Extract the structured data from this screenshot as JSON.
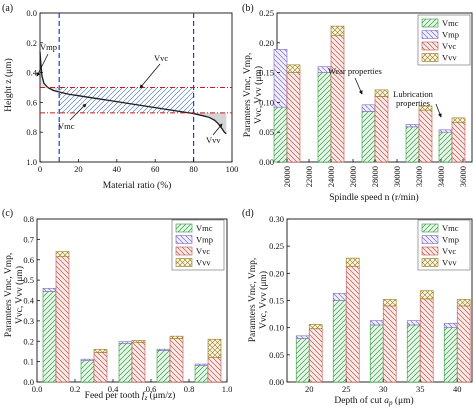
{
  "chart_data": [
    {
      "panel": "(a)",
      "type": "line",
      "xlabel": "Material ratio (%)",
      "ylabel": "Height z (μm)",
      "xlim": [
        0,
        100
      ],
      "ylim": [
        1.0,
        0.0
      ],
      "y_inverted": true,
      "xticks": [
        "0",
        "20",
        "40",
        "60",
        "80",
        "100"
      ],
      "yticks": [
        "0.0",
        "0.2",
        "0.4",
        "0.6",
        "0.8",
        "1.0"
      ],
      "curve": {
        "x": [
          0,
          0.5,
          1,
          2,
          4,
          7,
          10,
          15,
          20,
          25,
          30,
          35,
          40,
          45,
          50,
          55,
          60,
          65,
          70,
          75,
          80,
          85,
          88,
          91,
          93,
          95,
          96,
          97
        ],
        "y": [
          0.26,
          0.35,
          0.42,
          0.47,
          0.5,
          0.52,
          0.53,
          0.545,
          0.555,
          0.565,
          0.575,
          0.585,
          0.595,
          0.605,
          0.615,
          0.625,
          0.635,
          0.645,
          0.655,
          0.665,
          0.675,
          0.69,
          0.7,
          0.72,
          0.745,
          0.78,
          0.8,
          0.81
        ]
      },
      "vertical_lines_x": [
        10,
        80
      ],
      "horizontal_lines_y": [
        0.5,
        0.67
      ],
      "annotations": [
        "Vmp",
        "Vvc",
        "Vmc",
        "Vvv"
      ],
      "colors": {
        "curve": "#1c1c1c",
        "hatch": "#3a6fb0",
        "vline": "#1f3fd6",
        "hline": "#d01818"
      }
    },
    {
      "panel": "(b)",
      "type": "bar",
      "stacked": true,
      "xlabel": "Spindle speed n (r/min)",
      "ylabel_lines": [
        "Paramters Vmc, Vmp,",
        "Vvc, Vvv (μm)"
      ],
      "ylim": [
        0,
        0.25
      ],
      "yticks": [
        "0.00",
        "0.05",
        "0.10",
        "0.15",
        "0.20",
        "0.25"
      ],
      "categories": [
        "20000",
        "22000",
        "24000",
        "26000",
        "28000",
        "30000",
        "32000",
        "34000",
        "36000"
      ],
      "groups": [
        {
          "x": 20000,
          "bars": [
            {
              "s": [
                0.092,
                0.097,
                0,
                0
              ]
            },
            {
              "s": [
                0,
                0,
                0.15,
                0.013
              ]
            }
          ]
        },
        {
          "x": 24000,
          "bars": [
            {
              "s": [
                0.15,
                0.01,
                0,
                0
              ]
            },
            {
              "s": [
                0,
                0,
                0.212,
                0.016
              ]
            }
          ]
        },
        {
          "x": 28000,
          "bars": [
            {
              "s": [
                0.085,
                0.011,
                0,
                0
              ]
            },
            {
              "s": [
                0,
                0,
                0.11,
                0.011
              ]
            }
          ]
        },
        {
          "x": 32000,
          "bars": [
            {
              "s": [
                0.059,
                0.004,
                0,
                0
              ]
            },
            {
              "s": [
                0,
                0,
                0.087,
                0.007
              ]
            }
          ]
        },
        {
          "x": 35000,
          "bars": [
            {
              "s": [
                0.05,
                0.004,
                0,
                0
              ]
            },
            {
              "s": [
                0,
                0,
                0.066,
                0.008
              ]
            }
          ]
        }
      ],
      "legend": [
        "Vmc",
        "Vmp",
        "Vvc",
        "Vvv"
      ],
      "legend_position": "top-right",
      "annotations": [
        "Wear properties",
        "Lubrication properties"
      ]
    },
    {
      "panel": "(c)",
      "type": "bar",
      "stacked": true,
      "xlabel": "Feed per tooth fz (μm/z)",
      "ylabel_lines": [
        "Paramters Vmc, Vmp,",
        "Vvc, Vvv (μm)"
      ],
      "xlim": [
        0.0,
        1.0
      ],
      "ylim": [
        0,
        0.8
      ],
      "xticks": [
        "0.0",
        "0.2",
        "0.4",
        "0.6",
        "0.8",
        "1.0"
      ],
      "yticks": [
        "0.0",
        "0.1",
        "0.2",
        "0.3",
        "0.4",
        "0.5",
        "0.6",
        "0.7",
        "0.8"
      ],
      "groups": [
        {
          "x": 0.1,
          "bars": [
            {
              "s": [
                0.445,
                0.015,
                0,
                0
              ]
            },
            {
              "s": [
                0,
                0,
                0.615,
                0.025
              ]
            }
          ]
        },
        {
          "x": 0.3,
          "bars": [
            {
              "s": [
                0.105,
                0.007,
                0,
                0
              ]
            },
            {
              "s": [
                0,
                0,
                0.145,
                0.015
              ]
            }
          ]
        },
        {
          "x": 0.5,
          "bars": [
            {
              "s": [
                0.19,
                0.008,
                0,
                0
              ]
            },
            {
              "s": [
                0,
                0,
                0.193,
                0.011
              ]
            }
          ]
        },
        {
          "x": 0.7,
          "bars": [
            {
              "s": [
                0.155,
                0.006,
                0,
                0
              ]
            },
            {
              "s": [
                0,
                0,
                0.213,
                0.012
              ]
            }
          ]
        },
        {
          "x": 0.9,
          "bars": [
            {
              "s": [
                0.082,
                0.006,
                0,
                0
              ]
            },
            {
              "s": [
                0,
                0,
                0.12,
                0.09
              ]
            }
          ]
        }
      ],
      "legend": [
        "Vmc",
        "Vmp",
        "Vvc",
        "Vvv"
      ],
      "legend_position": "top-right"
    },
    {
      "panel": "(d)",
      "type": "bar",
      "stacked": true,
      "xlabel": "Depth of cut ap (μm)",
      "ylabel_lines": [
        "Paramters Vmc, Vmp,",
        "Vvc, Vvv (μm)"
      ],
      "xlim": [
        17,
        42
      ],
      "ylim": [
        0,
        0.3
      ],
      "xticks": [
        "20",
        "25",
        "30",
        "35",
        "40"
      ],
      "yticks": [
        "0.00",
        "0.05",
        "0.10",
        "0.15",
        "0.20",
        "0.25",
        "0.30"
      ],
      "groups": [
        {
          "x": 20,
          "bars": [
            {
              "s": [
                0.08,
                0.005,
                0,
                0
              ]
            },
            {
              "s": [
                0,
                0,
                0.098,
                0.008
              ]
            }
          ]
        },
        {
          "x": 25,
          "bars": [
            {
              "s": [
                0.15,
                0.013,
                0,
                0
              ]
            },
            {
              "s": [
                0,
                0,
                0.213,
                0.015
              ]
            }
          ]
        },
        {
          "x": 30,
          "bars": [
            {
              "s": [
                0.105,
                0.008,
                0,
                0
              ]
            },
            {
              "s": [
                0,
                0,
                0.14,
                0.012
              ]
            }
          ]
        },
        {
          "x": 35,
          "bars": [
            {
              "s": [
                0.105,
                0.008,
                0,
                0
              ]
            },
            {
              "s": [
                0,
                0,
                0.153,
                0.015
              ]
            }
          ]
        },
        {
          "x": 40,
          "bars": [
            {
              "s": [
                0.1,
                0.008,
                0,
                0
              ]
            },
            {
              "s": [
                0,
                0,
                0.14,
                0.012
              ]
            }
          ]
        }
      ],
      "legend": [
        "Vmc",
        "Vmp",
        "Vvc",
        "Vvv"
      ],
      "legend_position": "top-right"
    }
  ],
  "labels": {
    "panel_a": "(a)",
    "panel_b": "(b)",
    "panel_c": "(c)",
    "panel_d": "(d)",
    "a_xlabel": "Material ratio (%)",
    "a_ylabel": "Height z (μm)",
    "b_xlabel": "Spindle speed n (r/min)",
    "c_xlabel_pre": "Feed per tooth ",
    "c_xlabel_var": "f",
    "c_xlabel_sub": "z",
    "c_xlabel_post": " (μm/z)",
    "d_xlabel_pre": "Depth of cut ",
    "d_xlabel_var": "a",
    "d_xlabel_sub": "p",
    "d_xlabel_post": " (μm)",
    "bar_ylabel_1": "Paramters Vmc, Vmp,",
    "bar_ylabel_2": "Vvc, Vvv (μm)",
    "ann_vmp": "Vmp",
    "ann_vvc": "Vvc",
    "ann_vmc": "Vmc",
    "ann_vvv": "Vvv",
    "ann_wear": "Wear properties",
    "ann_lub_1": "Lubrication",
    "ann_lub_2": "properties"
  },
  "series_colors": {
    "Vmc": "#2e9e3c",
    "Vmp": "#7d6bc4",
    "Vvc": "#c4544a",
    "Vvv": "#9a7a18",
    "Vvc_fill": "#f7ecea",
    "Vmc_fill": "#eaf6ec",
    "Vmp_fill": "#f2f0fa",
    "Vvv_fill": "#fbf7e8"
  }
}
